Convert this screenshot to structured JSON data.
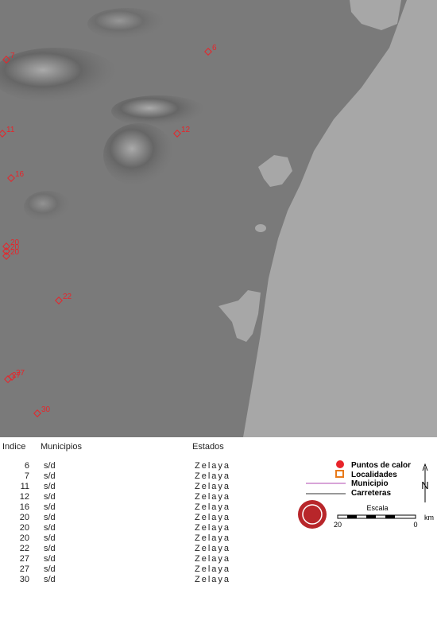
{
  "map": {
    "hotspots": [
      {
        "label": "6"
      },
      {
        "label": "7"
      },
      {
        "label": "11"
      },
      {
        "label": "12"
      },
      {
        "label": "16"
      },
      {
        "label": "20"
      },
      {
        "label": "20"
      },
      {
        "label": "20"
      },
      {
        "label": "22"
      },
      {
        "label": "27"
      },
      {
        "label": "27"
      },
      {
        "label": "30"
      }
    ]
  },
  "table": {
    "header": [
      "Indice",
      "Municipios",
      "Estados"
    ],
    "rows": [
      [
        6,
        "s/d",
        "Zelaya"
      ],
      [
        7,
        "s/d",
        "Zelaya"
      ],
      [
        11,
        "s/d",
        "Zelaya"
      ],
      [
        12,
        "s/d",
        "Zelaya"
      ],
      [
        16,
        "s/d",
        "Zelaya"
      ],
      [
        20,
        "s/d",
        "Zelaya"
      ],
      [
        20,
        "s/d",
        "Zelaya"
      ],
      [
        20,
        "s/d",
        "Zelaya"
      ],
      [
        22,
        "s/d",
        "Zelaya"
      ],
      [
        27,
        "s/d",
        "Zelaya"
      ],
      [
        27,
        "s/d",
        "Zelaya"
      ],
      [
        30,
        "s/d",
        "Zelaya"
      ]
    ]
  },
  "legend": {
    "items": [
      "Puntos de calor",
      "Localidades",
      "Municipio",
      "Carreteras"
    ],
    "north": "N",
    "scale_title": "Escala",
    "scale_left": "20",
    "scale_right": "0",
    "scale_unit": "km"
  }
}
